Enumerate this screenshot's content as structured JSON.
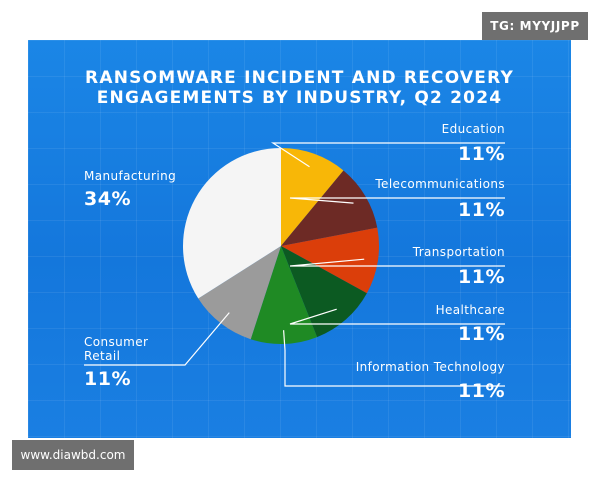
{
  "watermark_top": "TG: MYYJJPP",
  "watermark_bottom": "www.diawbd.com",
  "chart_data": {
    "type": "pie",
    "title_lines": [
      "RANSOMWARE INCIDENT AND RECOVERY",
      "ENGAGEMENTS BY INDUSTRY, Q2 2024"
    ],
    "slices": [
      {
        "name": "Education",
        "value": 11,
        "label": "11%",
        "color": "#f8b707"
      },
      {
        "name": "Telecommunications",
        "value": 11,
        "label": "11%",
        "color": "#6d2a25"
      },
      {
        "name": "Transportation",
        "value": 11,
        "label": "11%",
        "color": "#db3e0a"
      },
      {
        "name": "Healthcare",
        "value": 11,
        "label": "11%",
        "color": "#0c5a22"
      },
      {
        "name": "Information Technology",
        "value": 11,
        "label": "11%",
        "color": "#1f8a24"
      },
      {
        "name": "Consumer Retail",
        "name_lines": [
          "Consumer",
          "Retail"
        ],
        "value": 11,
        "label": "11%",
        "color": "#9b9b9b"
      },
      {
        "name": "Manufacturing",
        "value": 34,
        "label": "34%",
        "color": "#f5f5f5"
      }
    ]
  }
}
